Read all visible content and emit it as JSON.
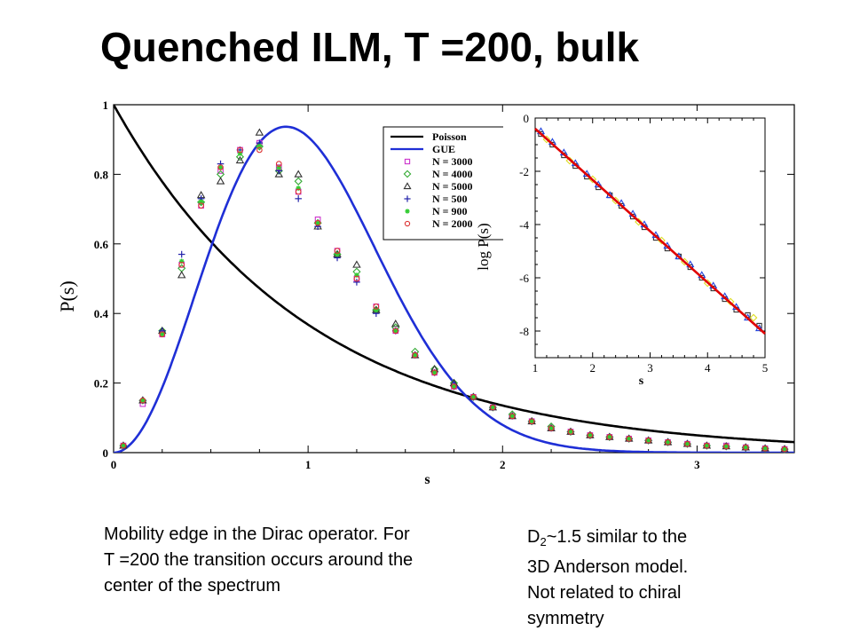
{
  "page_title": "Quenched ILM, T =200, bulk",
  "caption_left": "Mobility edge in the Dirac operator. For T =200  the transition occurs around the center of the spectrum",
  "caption_right": {
    "d_main": "D",
    "d_sub": "2",
    "line1_rest": "~1.5 similar to the",
    "line2": "3D Anderson model.",
    "line3": "Not related to chiral",
    "line4": "symmetry"
  },
  "chart_data": [
    {
      "type": "scatter",
      "xlabel": "s",
      "ylabel": "P(s)",
      "xlim": [
        0,
        3.5
      ],
      "ylim": [
        0,
        1
      ],
      "x_ticks": [
        0,
        1,
        2,
        3
      ],
      "y_ticks": [
        "0",
        "0.2",
        "0.4",
        "0.6",
        "0.8",
        "1"
      ],
      "legend_position": "top-right",
      "curves": [
        {
          "name": "Poisson",
          "formula": "exp(-s)",
          "color": "#000000"
        },
        {
          "name": "GUE",
          "formula": "(32/pi^2) s^2 exp(-4 s^2/pi)",
          "color": "#1f2fd6"
        }
      ],
      "series": [
        {
          "name": "N = 3000",
          "marker": "square",
          "color": "#cc33cc",
          "x": [
            0.05,
            0.15,
            0.25,
            0.35,
            0.45,
            0.55,
            0.65,
            0.75,
            0.85,
            0.95,
            1.05,
            1.15,
            1.25,
            1.35,
            1.45,
            1.55,
            1.65,
            1.75,
            1.85,
            1.95,
            2.05,
            2.15,
            2.25,
            2.35,
            2.45,
            2.55,
            2.65,
            2.75,
            2.85,
            2.95,
            3.05,
            3.15,
            3.25,
            3.35,
            3.45
          ],
          "y": [
            0.02,
            0.14,
            0.34,
            0.54,
            0.71,
            0.81,
            0.87,
            0.89,
            0.82,
            0.75,
            0.67,
            0.58,
            0.5,
            0.42,
            0.35,
            0.28,
            0.23,
            0.19,
            0.16,
            0.13,
            0.105,
            0.09,
            0.07,
            0.06,
            0.05,
            0.045,
            0.04,
            0.035,
            0.03,
            0.025,
            0.02,
            0.02,
            0.015,
            0.012,
            0.01
          ]
        },
        {
          "name": "N = 4000",
          "marker": "diamond",
          "color": "#33aa33",
          "x": [
            0.05,
            0.15,
            0.25,
            0.35,
            0.45,
            0.55,
            0.65,
            0.75,
            0.85,
            0.95,
            1.05,
            1.15,
            1.25,
            1.35,
            1.45,
            1.55,
            1.65,
            1.75,
            1.85,
            1.95,
            2.05,
            2.15,
            2.25,
            2.35,
            2.45,
            2.55,
            2.65,
            2.75,
            2.85,
            2.95,
            3.05,
            3.15,
            3.25,
            3.35,
            3.45
          ],
          "y": [
            0.02,
            0.15,
            0.35,
            0.53,
            0.72,
            0.8,
            0.85,
            0.88,
            0.81,
            0.78,
            0.66,
            0.57,
            0.52,
            0.41,
            0.36,
            0.29,
            0.24,
            0.2,
            0.16,
            0.13,
            0.11,
            0.09,
            0.075,
            0.06,
            0.05,
            0.045,
            0.04,
            0.035,
            0.03,
            0.025,
            0.02,
            0.018,
            0.015,
            0.012,
            0.01
          ]
        },
        {
          "name": "N = 5000",
          "marker": "triangle",
          "color": "#333333",
          "x": [
            0.05,
            0.15,
            0.25,
            0.35,
            0.45,
            0.55,
            0.65,
            0.75,
            0.85,
            0.95,
            1.05,
            1.15,
            1.25,
            1.35,
            1.45,
            1.55,
            1.65,
            1.75,
            1.85,
            1.95,
            2.05,
            2.15,
            2.25,
            2.35,
            2.45,
            2.55,
            2.65,
            2.75,
            2.85,
            2.95,
            3.05,
            3.15,
            3.25,
            3.35,
            3.45
          ],
          "y": [
            0.02,
            0.15,
            0.35,
            0.51,
            0.74,
            0.78,
            0.84,
            0.92,
            0.8,
            0.8,
            0.65,
            0.57,
            0.54,
            0.41,
            0.37,
            0.28,
            0.24,
            0.2,
            0.16,
            0.13,
            0.105,
            0.09,
            0.07,
            0.06,
            0.05,
            0.045,
            0.04,
            0.035,
            0.03,
            0.025,
            0.02,
            0.018,
            0.015,
            0.012,
            0.01
          ]
        },
        {
          "name": "N = 500",
          "marker": "plus",
          "color": "#2222aa",
          "x": [
            0.05,
            0.15,
            0.25,
            0.35,
            0.45,
            0.55,
            0.65,
            0.75,
            0.85,
            0.95,
            1.05,
            1.15,
            1.25,
            1.35,
            1.45,
            1.55,
            1.65,
            1.75,
            1.85,
            1.95,
            2.05,
            2.15,
            2.25,
            2.35,
            2.45,
            2.55,
            2.65,
            2.75,
            2.85,
            2.95,
            3.05,
            3.15,
            3.25,
            3.35,
            3.45
          ],
          "y": [
            0.02,
            0.15,
            0.35,
            0.57,
            0.73,
            0.83,
            0.87,
            0.89,
            0.81,
            0.73,
            0.65,
            0.56,
            0.49,
            0.4,
            0.35,
            0.28,
            0.23,
            0.19,
            0.16,
            0.13,
            0.105,
            0.09,
            0.07,
            0.06,
            0.05,
            0.045,
            0.04,
            0.035,
            0.03,
            0.025,
            0.02,
            0.018,
            0.015,
            0.012,
            0.01
          ]
        },
        {
          "name": "N = 900",
          "marker": "asterisk",
          "color": "#33cc33",
          "x": [
            0.05,
            0.15,
            0.25,
            0.35,
            0.45,
            0.55,
            0.65,
            0.75,
            0.85,
            0.95,
            1.05,
            1.15,
            1.25,
            1.35,
            1.45,
            1.55,
            1.65,
            1.75,
            1.85,
            1.95,
            2.05,
            2.15,
            2.25,
            2.35,
            2.45,
            2.55,
            2.65,
            2.75,
            2.85,
            2.95,
            3.05,
            3.15,
            3.25,
            3.35,
            3.45
          ],
          "y": [
            0.02,
            0.15,
            0.34,
            0.55,
            0.72,
            0.82,
            0.86,
            0.88,
            0.82,
            0.76,
            0.66,
            0.57,
            0.51,
            0.41,
            0.35,
            0.28,
            0.23,
            0.19,
            0.16,
            0.13,
            0.105,
            0.09,
            0.07,
            0.06,
            0.05,
            0.045,
            0.04,
            0.035,
            0.03,
            0.025,
            0.02,
            0.018,
            0.015,
            0.012,
            0.01
          ]
        },
        {
          "name": "N = 2000",
          "marker": "circle",
          "color": "#dd3333",
          "x": [
            0.05,
            0.15,
            0.25,
            0.35,
            0.45,
            0.55,
            0.65,
            0.75,
            0.85,
            0.95,
            1.05,
            1.15,
            1.25,
            1.35,
            1.45,
            1.55,
            1.65,
            1.75,
            1.85,
            1.95,
            2.05,
            2.15,
            2.25,
            2.35,
            2.45,
            2.55,
            2.65,
            2.75,
            2.85,
            2.95,
            3.05,
            3.15,
            3.25,
            3.35,
            3.45
          ],
          "y": [
            0.02,
            0.15,
            0.34,
            0.54,
            0.71,
            0.82,
            0.87,
            0.87,
            0.83,
            0.75,
            0.66,
            0.58,
            0.5,
            0.42,
            0.35,
            0.28,
            0.23,
            0.19,
            0.16,
            0.13,
            0.105,
            0.09,
            0.07,
            0.06,
            0.05,
            0.045,
            0.04,
            0.035,
            0.03,
            0.025,
            0.02,
            0.018,
            0.015,
            0.012,
            0.01
          ]
        }
      ]
    },
    {
      "type": "line",
      "xlabel": "s",
      "ylabel": "log P(s)",
      "xlim": [
        1,
        5
      ],
      "ylim": [
        -9,
        0
      ],
      "x_ticks": [
        1,
        2,
        3,
        4,
        5
      ],
      "y_ticks": [
        0,
        -2,
        -4,
        -6,
        -8
      ],
      "fit_line": {
        "x": [
          1,
          5
        ],
        "y": [
          -0.4,
          -8.1
        ],
        "color": "#e00000"
      },
      "series": [
        {
          "name": "N = 3000",
          "marker": "square",
          "color": "#333333",
          "x": [
            1.1,
            1.3,
            1.5,
            1.7,
            1.9,
            2.1,
            2.3,
            2.5,
            2.7,
            2.9,
            3.1,
            3.3,
            3.5,
            3.7,
            3.9,
            4.1,
            4.3,
            4.5,
            4.7,
            4.9
          ],
          "y": [
            -0.6,
            -1.0,
            -1.4,
            -1.8,
            -2.2,
            -2.6,
            -2.9,
            -3.3,
            -3.7,
            -4.1,
            -4.5,
            -4.9,
            -5.2,
            -5.6,
            -6.0,
            -6.4,
            -6.8,
            -7.2,
            -7.4,
            -7.8
          ]
        },
        {
          "name": "N = 4000",
          "marker": "triangle",
          "color": "#2244dd",
          "x": [
            1.1,
            1.3,
            1.5,
            1.7,
            1.9,
            2.1,
            2.3,
            2.5,
            2.7,
            2.9,
            3.1,
            3.3,
            3.5,
            3.7,
            3.9,
            4.1,
            4.3,
            4.5,
            4.7,
            4.9
          ],
          "y": [
            -0.5,
            -0.9,
            -1.3,
            -1.7,
            -2.1,
            -2.5,
            -2.9,
            -3.2,
            -3.6,
            -4.0,
            -4.4,
            -4.8,
            -5.2,
            -5.5,
            -5.9,
            -6.3,
            -6.7,
            -7.1,
            -7.5,
            -7.9
          ]
        },
        {
          "name": "N = 5000",
          "marker": "diamond",
          "color": "#dddd22",
          "x": [
            1.2,
            1.6,
            2.0,
            2.4,
            2.8,
            3.2,
            3.6,
            4.0,
            4.4,
            4.8
          ],
          "y": [
            -0.8,
            -1.6,
            -2.3,
            -3.1,
            -3.9,
            -4.6,
            -5.4,
            -6.2,
            -6.9,
            -7.5
          ]
        }
      ]
    }
  ]
}
